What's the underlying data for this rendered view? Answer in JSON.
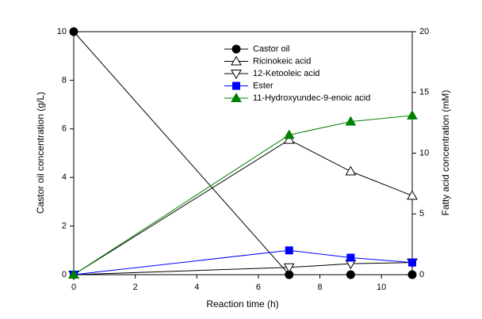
{
  "chart_data": {
    "type": "line",
    "xlabel": "Reaction time (h)",
    "ylabel": "Castor oil concentration (g/L)",
    "y2label": "Fatty acid concentration (mM)",
    "x": [
      0,
      7,
      9,
      11
    ],
    "xlim": [
      0,
      11
    ],
    "xticks": [
      0,
      2,
      4,
      6,
      8,
      10
    ],
    "ylim": [
      0,
      10
    ],
    "yticks": [
      0,
      2,
      4,
      6,
      8,
      10
    ],
    "y2lim": [
      0,
      20
    ],
    "y2ticks": [
      0,
      5,
      10,
      15,
      20
    ],
    "legend": "top",
    "series": [
      {
        "name": "Castor oil",
        "color": "#000000",
        "marker": "circle",
        "fill": "#000000",
        "values": [
          10,
          0,
          0,
          0
        ]
      },
      {
        "name": "Ricinokeic acid",
        "color": "#000000",
        "marker": "triangle-up",
        "fill": "#ffffff",
        "axis": "y2",
        "values": [
          0,
          11.1,
          8.5,
          6.5
        ]
      },
      {
        "name": "12-Ketooleic acid",
        "color": "#000000",
        "marker": "triangle-down",
        "fill": "#ffffff",
        "axis": "y2",
        "values": [
          0,
          0.6,
          0.9,
          1.0
        ]
      },
      {
        "name": "Ester",
        "color": "#0000ff",
        "marker": "square",
        "fill": "#0000ff",
        "axis": "y2",
        "values": [
          0,
          2.0,
          1.4,
          1.0
        ]
      },
      {
        "name": "11-Hydroxyundec-9-enoic acid",
        "color": "#008000",
        "marker": "triangle-up",
        "fill": "#008000",
        "axis": "y2",
        "values": [
          0,
          11.5,
          12.6,
          13.1
        ]
      }
    ]
  }
}
